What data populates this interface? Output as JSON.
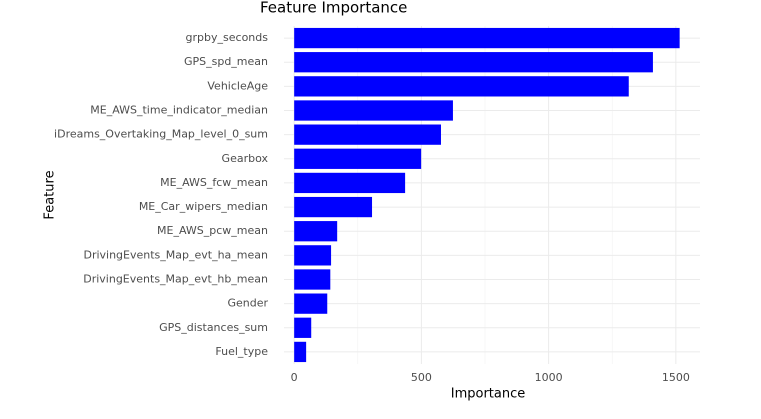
{
  "chart_data": {
    "type": "bar",
    "orientation": "horizontal",
    "title": "Feature Importance",
    "x_label": "Importance",
    "y_label": "Feature",
    "categories": [
      "grpby_seconds",
      "GPS_spd_mean",
      "VehicleAge",
      "ME_AWS_time_indicator_median",
      "iDreams_Overtaking_Map_level_0_sum",
      "Gearbox",
      "ME_AWS_fcw_mean",
      "ME_Car_wipers_median",
      "ME_AWS_pcw_mean",
      "DrivingEvents_Map_evt_ha_mean",
      "DrivingEvents_Map_evt_hb_mean",
      "Gender",
      "GPS_distances_sum",
      "Fuel_type"
    ],
    "values": [
      1515,
      1410,
      1315,
      624,
      577,
      499,
      436,
      306,
      169,
      145,
      142,
      130,
      67,
      47
    ],
    "color": "#0000ff",
    "xlim": [
      -40,
      1595
    ],
    "xticks": [
      0,
      500,
      1000,
      1500
    ],
    "grid": true
  }
}
